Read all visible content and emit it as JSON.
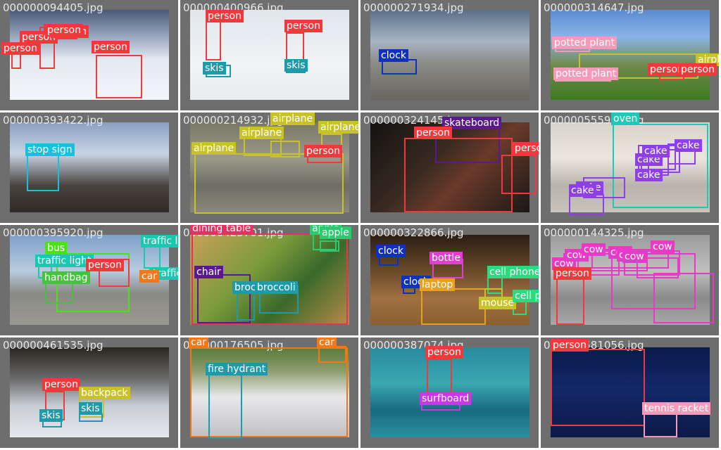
{
  "colors": {
    "tile_bg": "#6e6e6e",
    "person": "#f0393c",
    "skis": "#1f9aab",
    "clock": "#1030c0",
    "potted_plant": "#f59ab8",
    "airplane": "#c8c22a",
    "stop_sign": "#18c0e0",
    "skateboard": "#5a1a8c",
    "oven": "#20c8b8",
    "cake": "#8f3fe6",
    "bus": "#4be018",
    "traffic_light": "#18c8b0",
    "car": "#f07818",
    "handbag": "#48c040",
    "dining_table": "#e83060",
    "apple": "#2ec870",
    "chair": "#5a1a8c",
    "broccoli": "#1f9aab",
    "bottle": "#e040d0",
    "cell_phone": "#30d880",
    "laptop": "#e8a020",
    "mouse": "#c8c22a",
    "cow": "#e83ac8",
    "backpack": "#c8c22a",
    "fire_hydrant": "#1f9aab",
    "surfboard": "#c838e8",
    "tennis_racket": "#f59ab8"
  },
  "tiles": [
    {
      "filename": "000000094405.jpg",
      "labels": [
        "person",
        "person",
        "person",
        "person",
        "person"
      ]
    },
    {
      "filename": "000000400966.jpg",
      "labels": [
        "person",
        "person",
        "skis",
        "skis"
      ]
    },
    {
      "filename": "000000271934.jpg",
      "labels": [
        "clock"
      ]
    },
    {
      "filename": "000000314647.jpg",
      "labels": [
        "potted plant",
        "potted plant",
        "airplane",
        "person",
        "person"
      ]
    },
    {
      "filename": "000000393422.jpg",
      "labels": [
        "stop sign"
      ]
    },
    {
      "filename": "000000214932.jpg",
      "labels": [
        "airplane",
        "airplane",
        "airplane",
        "airplane",
        "person"
      ]
    },
    {
      "filename": "000000324145.jpg",
      "labels": [
        "skateboard",
        "person",
        "person"
      ]
    },
    {
      "filename": "000000555901.jpg",
      "labels": [
        "oven",
        "cake",
        "cake",
        "cake",
        "cake",
        "cake",
        "cake"
      ]
    },
    {
      "filename": "000000395920.jpg",
      "labels": [
        "bus",
        "traffic light",
        "traffic light",
        "person",
        "handbag",
        "traffic light",
        "car"
      ]
    },
    {
      "filename": "000000425701.jpg",
      "labels": [
        "dining table",
        "apple",
        "apple",
        "chair",
        "broccoli",
        "broccoli"
      ]
    },
    {
      "filename": "000000322866.jpg",
      "labels": [
        "clock",
        "bottle",
        "clock",
        "laptop",
        "cell phone",
        "mouse",
        "cell phone"
      ]
    },
    {
      "filename": "000000144325.jpg",
      "labels": [
        "cow",
        "cow",
        "cow",
        "cow",
        "cow",
        "person",
        "cow",
        "cow"
      ]
    },
    {
      "filename": "000000461535.jpg",
      "labels": [
        "person",
        "backpack",
        "skis",
        "skis"
      ]
    },
    {
      "filename": "000000176505.jpg",
      "labels": [
        "car",
        "car",
        "fire hydrant"
      ]
    },
    {
      "filename": "000000387074.jpg",
      "labels": [
        "person",
        "surfboard"
      ]
    },
    {
      "filename": "000000581056.jpg",
      "labels": [
        "person",
        "tennis racket"
      ]
    }
  ]
}
